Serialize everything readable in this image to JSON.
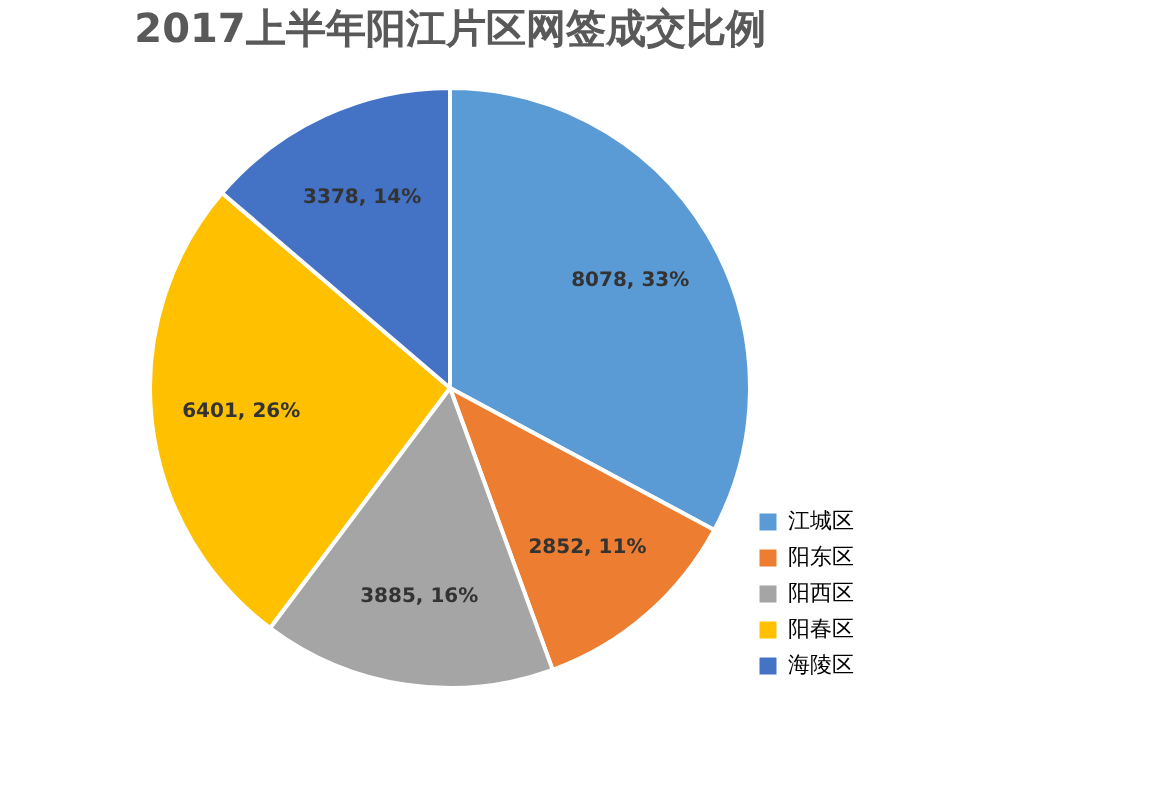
{
  "chart_data": {
    "type": "pie",
    "title": "2017上半年阳江片区网签成交比例",
    "categories": [
      "江城区",
      "阳东区",
      "阳西区",
      "阳春区",
      "海陵区"
    ],
    "values": [
      8078,
      2852,
      3885,
      6401,
      3378
    ],
    "colors": [
      "#5b9bd5",
      "#ed7d31",
      "#a5a5a5",
      "#ffc000",
      "#4472c4"
    ],
    "value_labels": [
      "8078, 33%",
      "2852, 11%",
      "3885, 16%",
      "6401, 26%",
      "3378, 14%"
    ],
    "legend": "bottom right"
  }
}
